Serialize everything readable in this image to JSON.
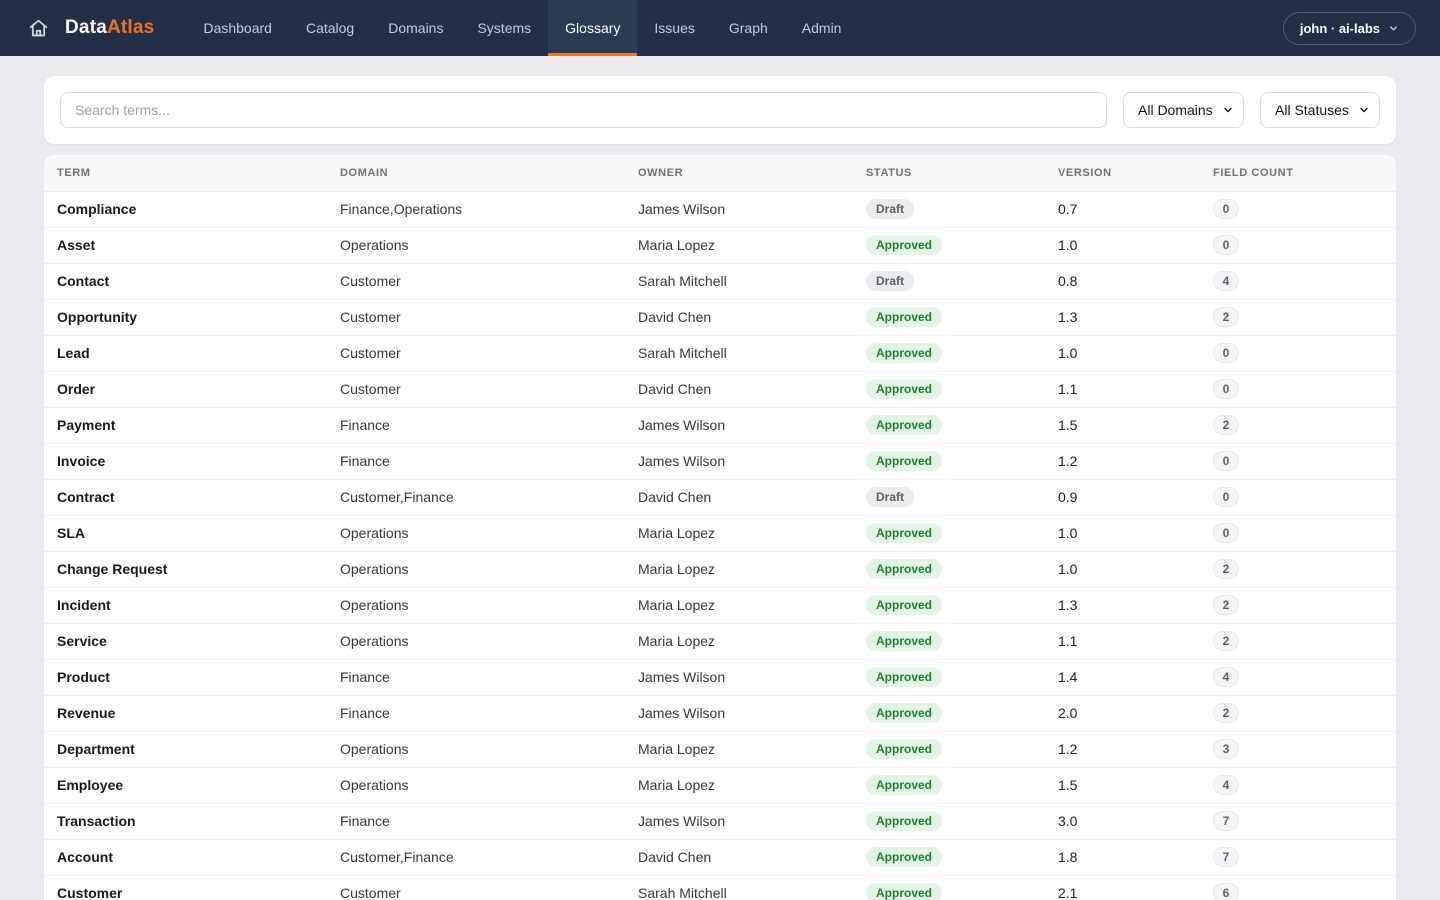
{
  "navbar": {
    "brand": {
      "part1": "Data",
      "part2": "Atlas"
    },
    "items": [
      {
        "label": "Dashboard",
        "active": false
      },
      {
        "label": "Catalog",
        "active": false
      },
      {
        "label": "Domains",
        "active": false
      },
      {
        "label": "Systems",
        "active": false
      },
      {
        "label": "Glossary",
        "active": true
      },
      {
        "label": "Issues",
        "active": false
      },
      {
        "label": "Graph",
        "active": false
      },
      {
        "label": "Admin",
        "active": false
      }
    ],
    "user_label": "john · ai-labs"
  },
  "filters": {
    "search_placeholder": "Search terms...",
    "domain_select_value": "All Domains",
    "status_select_value": "All Statuses"
  },
  "table": {
    "columns": [
      "Term",
      "Domain",
      "Owner",
      "Status",
      "Version",
      "Field Count"
    ],
    "rows": [
      {
        "term": "Compliance",
        "domain": "Finance,Operations",
        "owner": "James Wilson",
        "status": "Draft",
        "version": "0.7",
        "field_count": "0"
      },
      {
        "term": "Asset",
        "domain": "Operations",
        "owner": "Maria Lopez",
        "status": "Approved",
        "version": "1.0",
        "field_count": "0"
      },
      {
        "term": "Contact",
        "domain": "Customer",
        "owner": "Sarah Mitchell",
        "status": "Draft",
        "version": "0.8",
        "field_count": "4"
      },
      {
        "term": "Opportunity",
        "domain": "Customer",
        "owner": "David Chen",
        "status": "Approved",
        "version": "1.3",
        "field_count": "2"
      },
      {
        "term": "Lead",
        "domain": "Customer",
        "owner": "Sarah Mitchell",
        "status": "Approved",
        "version": "1.0",
        "field_count": "0"
      },
      {
        "term": "Order",
        "domain": "Customer",
        "owner": "David Chen",
        "status": "Approved",
        "version": "1.1",
        "field_count": "0"
      },
      {
        "term": "Payment",
        "domain": "Finance",
        "owner": "James Wilson",
        "status": "Approved",
        "version": "1.5",
        "field_count": "2"
      },
      {
        "term": "Invoice",
        "domain": "Finance",
        "owner": "James Wilson",
        "status": "Approved",
        "version": "1.2",
        "field_count": "0"
      },
      {
        "term": "Contract",
        "domain": "Customer,Finance",
        "owner": "David Chen",
        "status": "Draft",
        "version": "0.9",
        "field_count": "0"
      },
      {
        "term": "SLA",
        "domain": "Operations",
        "owner": "Maria Lopez",
        "status": "Approved",
        "version": "1.0",
        "field_count": "0"
      },
      {
        "term": "Change Request",
        "domain": "Operations",
        "owner": "Maria Lopez",
        "status": "Approved",
        "version": "1.0",
        "field_count": "2"
      },
      {
        "term": "Incident",
        "domain": "Operations",
        "owner": "Maria Lopez",
        "status": "Approved",
        "version": "1.3",
        "field_count": "2"
      },
      {
        "term": "Service",
        "domain": "Operations",
        "owner": "Maria Lopez",
        "status": "Approved",
        "version": "1.1",
        "field_count": "2"
      },
      {
        "term": "Product",
        "domain": "Finance",
        "owner": "James Wilson",
        "status": "Approved",
        "version": "1.4",
        "field_count": "4"
      },
      {
        "term": "Revenue",
        "domain": "Finance",
        "owner": "James Wilson",
        "status": "Approved",
        "version": "2.0",
        "field_count": "2"
      },
      {
        "term": "Department",
        "domain": "Operations",
        "owner": "Maria Lopez",
        "status": "Approved",
        "version": "1.2",
        "field_count": "3"
      },
      {
        "term": "Employee",
        "domain": "Operations",
        "owner": "Maria Lopez",
        "status": "Approved",
        "version": "1.5",
        "field_count": "4"
      },
      {
        "term": "Transaction",
        "domain": "Finance",
        "owner": "James Wilson",
        "status": "Approved",
        "version": "3.0",
        "field_count": "7"
      },
      {
        "term": "Account",
        "domain": "Customer,Finance",
        "owner": "David Chen",
        "status": "Approved",
        "version": "1.8",
        "field_count": "7"
      },
      {
        "term": "Customer",
        "domain": "Customer",
        "owner": "Sarah Mitchell",
        "status": "Approved",
        "version": "2.1",
        "field_count": "6"
      }
    ]
  },
  "colors": {
    "navbar_bg": "#242f47",
    "navbar_active_bg": "#2d3a54",
    "accent_orange": "#ee7428",
    "page_bg": "#e8eaed",
    "status_draft_bg": "#eaebee",
    "status_draft_text": "#585f69",
    "status_approved_bg": "#e3f3e5",
    "status_approved_text": "#1f7e2e"
  }
}
